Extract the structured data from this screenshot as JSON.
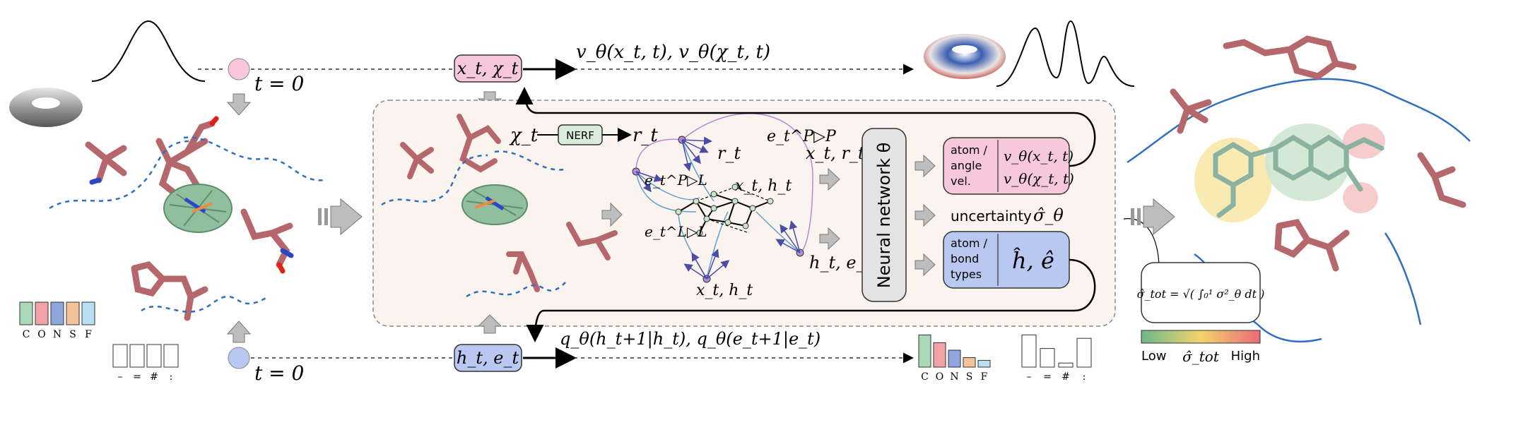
{
  "top_row": {
    "t_label": "t = 0",
    "state_label": "x_t, χ_t",
    "velocity_label": "v_θ(x_t, t), v_θ(χ_t, t)"
  },
  "bottom_row": {
    "t_label": "t = 0",
    "state_label": "h_t, e_t",
    "prob_label": "q_θ(h_t+1|h_t), q_θ(e_t+1|e_t)"
  },
  "legend_atoms": {
    "labels": [
      "C",
      "O",
      "N",
      "S",
      "F"
    ],
    "colors": [
      "#a9d9b6",
      "#f1a3a8",
      "#8fa7de",
      "#f6c29a",
      "#b9e0f2"
    ]
  },
  "legend_bonds": {
    "labels": [
      "–",
      "=",
      "#",
      ":"
    ]
  },
  "center_panel": {
    "chi_label": "χ_t",
    "nerf_label": "NERF",
    "r_label": "r_t",
    "graph_labels": {
      "r_top": "r_t",
      "e_pp": "e_t^P▷P",
      "e_pl": "e_t^P▷L",
      "xh_top": "x_t, h_t",
      "e_lpl": "e_t^L▷L",
      "xh_bottom": "x_t, h_t"
    },
    "input_top": "x_t, r_t",
    "input_bottom": "h_t, e_t",
    "network_label": "Neural network θ",
    "output_vel_title": [
      "atom /",
      "angle",
      "vel."
    ],
    "output_vel_values": [
      "v_θ(x_t, t)",
      "v_θ(χ_t, t)"
    ],
    "uncertainty_label": "uncertainty",
    "uncertainty_symbol": "σ̂_θ",
    "output_type_title": [
      "atom /",
      "bond",
      "types"
    ],
    "output_type_values": "ĥ, ê"
  },
  "formula_box": {
    "text": "σ̂_tot = √( ∫₀¹ σ²_θ dt )"
  },
  "colorbar": {
    "low": "Low",
    "mid": "σ̂_tot",
    "high": "High",
    "colors": [
      "#6bb98a",
      "#f3d36b",
      "#ea6b79"
    ]
  },
  "output_histograms": {
    "atom_labels": [
      "C",
      "O",
      "N",
      "S",
      "F"
    ],
    "atom_values": [
      0.95,
      0.72,
      0.5,
      0.28,
      0.2
    ],
    "bond_labels": [
      "–",
      "=",
      "#",
      ":"
    ],
    "bond_values": [
      0.95,
      0.55,
      0.12,
      0.85
    ]
  }
}
